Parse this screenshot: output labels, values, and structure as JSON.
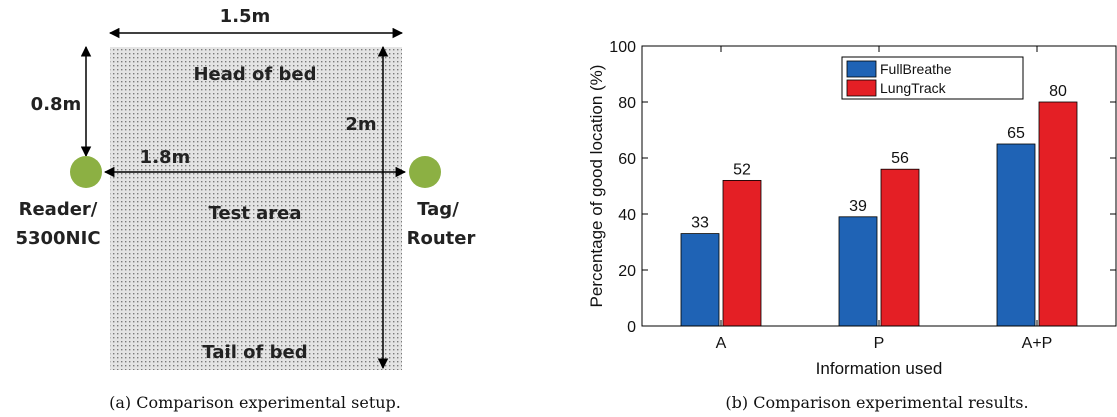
{
  "setup": {
    "width_label": "1.5m",
    "head_label": "Head of bed",
    "tail_label": "Tail of bed",
    "distance_top_label": "0.8m",
    "height_label": "2m",
    "reader_distance_label": "1.8m",
    "test_area_label": "Test area",
    "reader_label_line1": "Reader/",
    "reader_label_line2": "5300NIC",
    "tag_label_line1": "Tag/",
    "tag_label_line2": "Router",
    "caption": "(a)  Comparison experimental setup.",
    "colors": {
      "area_fill": "#e4e4e4",
      "dots": "#7a7a7a",
      "node": "#8cb043",
      "test_area_text": "#c41e2a"
    }
  },
  "results_caption": "(b)  Comparison experimental results.",
  "chart_data": {
    "type": "bar",
    "categories": [
      "A",
      "P",
      "A+P"
    ],
    "series": [
      {
        "name": "FullBreathe",
        "values": [
          33,
          39,
          65
        ],
        "color": "#1f63b5"
      },
      {
        "name": "LungTrack",
        "values": [
          52,
          56,
          80
        ],
        "color": "#e41f25"
      }
    ],
    "xlabel": "Information used",
    "ylabel": "Percentage of good location (%)",
    "ylim": [
      0,
      100
    ],
    "yticks": [
      0,
      20,
      40,
      60,
      80,
      100
    ],
    "grid": false,
    "legend_position": "top-right",
    "data_labels": true
  }
}
